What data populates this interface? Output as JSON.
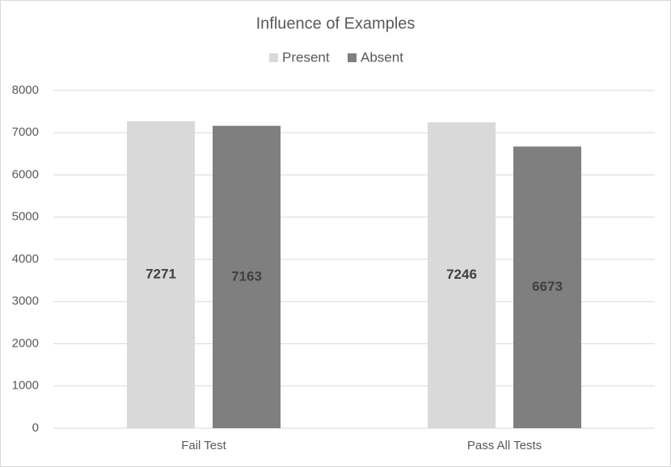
{
  "chart_data": {
    "type": "bar",
    "title": "Influence of Examples",
    "categories": [
      "Fail Test",
      "Pass All Tests"
    ],
    "series": [
      {
        "name": "Present",
        "color": "#d9d9d9",
        "values": [
          7271,
          7246
        ]
      },
      {
        "name": "Absent",
        "color": "#7f7f7f",
        "values": [
          7163,
          6673
        ]
      }
    ],
    "ylim": [
      0,
      8000
    ],
    "yticks": [
      0,
      1000,
      2000,
      3000,
      4000,
      5000,
      6000,
      7000,
      8000
    ],
    "grid": true,
    "legend": "top"
  }
}
